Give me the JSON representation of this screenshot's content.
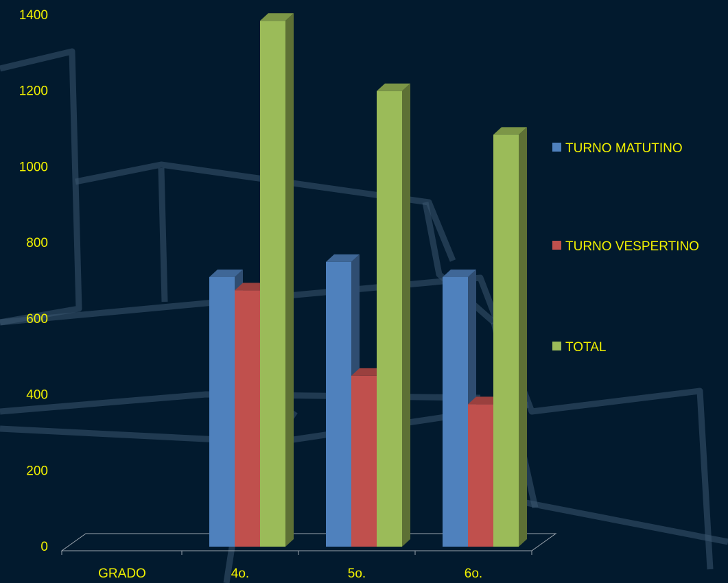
{
  "chart_data": {
    "type": "bar",
    "categories": [
      "GRADO",
      "4o.",
      "5o.",
      "6o."
    ],
    "series": [
      {
        "name": "TURNO MATUTINO",
        "color": "#4f81bd",
        "values": [
          0,
          710,
          750,
          710
        ]
      },
      {
        "name": "TURNO VESPERTINO",
        "color": "#c0504d",
        "values": [
          0,
          675,
          450,
          375
        ]
      },
      {
        "name": "TOTAL",
        "color": "#9bbb59",
        "values": [
          0,
          1385,
          1200,
          1085
        ]
      }
    ],
    "ylim": [
      0,
      1400
    ],
    "yticks": [
      "0",
      "200",
      "400",
      "600",
      "800",
      "1000",
      "1200",
      "1400"
    ],
    "legend_position": "right",
    "grid": false,
    "style": "3d-column",
    "label_color": "#f2f200",
    "background_color": "#021a2e"
  }
}
